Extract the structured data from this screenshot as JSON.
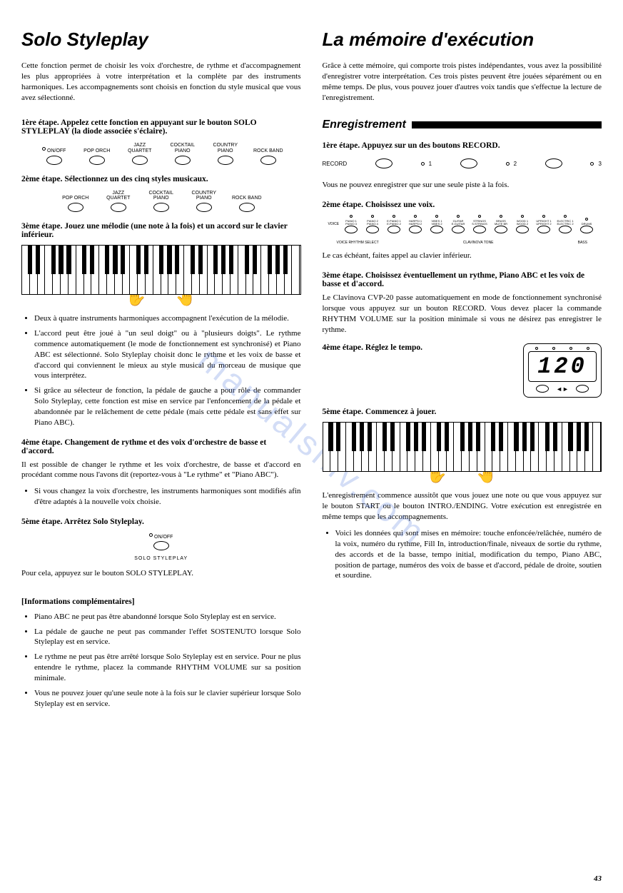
{
  "page_number": "43",
  "watermark": "manualshiv.com",
  "left": {
    "title": "Solo Styleplay",
    "intro": "Cette fonction permet de choisir les voix d'orchestre, de rythme et d'accompagnement les plus appropriées à votre interprétation et la complète par des instruments harmoniques. Les accompagnements sont choisis en fonction du style musical que vous avez sélectionné.",
    "step1": "1ère étape.  Appelez cette fonction en appuyant sur le bouton SOLO STYLEPLAY (la diode associée s'éclaire).",
    "buttons1_onoff": "ON/OFF",
    "styles": [
      "POP\nORCH",
      "JAZZ\nQUARTET",
      "COCKTAIL\nPIANO",
      "COUNTRY\nPIANO",
      "ROCK\nBAND"
    ],
    "step2": "2ème étape.  Sélectionnez un des cinq styles musicaux.",
    "step3": "3ème étape.  Jouez une mélodie (une note à la fois) et un accord  sur le clavier inférieur.",
    "step3_bullets": [
      "Deux à quatre instruments harmoniques accompagnent l'exécution de la mélodie.",
      "L'accord peut être joué à \"un seul doigt\" ou à \"plusieurs doigts\". Le rythme commence automatiquement (le mode de fonctionnement est synchronisé) et Piano ABC est sélectionné. Solo Styleplay choisit donc le rythme et les voix de basse et d'accord qui conviennent le mieux au style musical du morceau de musique que vous interprétez.",
      "Si grâce au sélecteur de fonction, la pédale de gauche a pour rôle de commander Solo Styleplay, cette fonction est mise en service par l'enfoncement de la pédale et abandonnée par le relâchement de cette pédale (mais cette pédale est sans effet sur Piano ABC)."
    ],
    "step4_title": "4ème étape.  Changement de rythme et des voix d'orchestre de basse et d'accord.",
    "step4_body": "Il est possible de changer le rythme et les voix d'orchestre, de basse et d'accord en procédant comme nous l'avons dit (reportez-vous à \"Le rythme\" et \"Piano ABC\").",
    "step4_bullets": [
      "Si vous changez la voix d'orchestre, les instruments harmoniques sont modifiés afin d'être adaptés à la nouvelle voix choisie."
    ],
    "step5": "5ème étape.  Arrêtez Solo Styleplay.",
    "solo_off_label": "ON/OFF",
    "solo_caption": "SOLO STYLEPLAY",
    "step5_body": "Pour cela, appuyez sur le bouton SOLO STYLEPLAY.",
    "info_hdr": "[Informations complémentaires]",
    "info_bullets": [
      "Piano ABC ne peut pas être abandonné lorsque Solo Styleplay est en service.",
      "La pédale de gauche ne peut pas commander l'effet SOSTENUTO lorsque Solo Styleplay est en service.",
      "Le rythme ne peut pas être arrêté lorsque Solo Styleplay est en service. Pour ne plus entendre le rythme, placez la commande RHYTHM VOLUME sur sa position minimale.",
      "Vous ne pouvez jouer qu'une seule note à la fois sur le clavier supérieur lorsque Solo Styleplay est en service."
    ]
  },
  "right": {
    "title": "La mémoire d'exécution",
    "intro": "Grâce à cette mémoire, qui comporte trois pistes indépendantes, vous avez la possibilité d'enregistrer votre interprétation. Ces trois pistes peuvent être jouées séparément ou en même temps. De plus, vous pouvez jouer d'autres voix tandis que s'effectue la lecture de l'enregistrement.",
    "section": "Enregistrement",
    "step1": "1ère étape.  Appuyez sur un des boutons RECORD.",
    "record_label": "RECORD",
    "record_nums": [
      "1",
      "2",
      "3"
    ],
    "step1_body": "Vous ne pouvez enregistrer que sur une seule piste à la fois.",
    "step2": "2ème étape.  Choisissez une voix.",
    "voices": [
      "PIANO 1",
      "PIANO 2",
      "E.PIANO 1",
      "HARPSI 1",
      "VIBES 1",
      "GUITAR",
      "STRINGS",
      "BRASS",
      "WOOD 1",
      "UPRIGHT 1",
      "ELECTRIC 1",
      "DRUMS"
    ],
    "voices2": [
      "PIANO 3",
      "PIANO 4",
      "E.PIANO 2",
      "HARPSI 2",
      "VIBES 2",
      "E.GUITAR",
      "S.STRINGS",
      "MUTE BR",
      "WOOD 2",
      "UPRIGHT 2",
      "ELECTRIC 2",
      ""
    ],
    "voice_side": "VOICE",
    "voice_sub_left": "VOICE RHYTHM SELECT",
    "voice_sub_mid": "CLAVINOVA TONE",
    "voice_sub_right": "BASS",
    "step2_body": "Le cas échéant, faites appel au clavier inférieur.",
    "step3_title": "3ème étape.  Choisissez éventuellement un rythme, Piano ABC et les voix de basse et d'accord.",
    "step3_body": "Le Clavinova CVP-20 passe automatiquement en mode de fonctionnement synchronisé lorsque vous appuyez sur un bouton RECORD. Vous devez placer la commande RHYTHM VOLUME sur la position minimale si vous ne désirez pas enregistrer le rythme.",
    "step4": "4ème étape.  Réglez le tempo.",
    "tempo_value": "120",
    "step5": "5ème étape.  Commencez à jouer.",
    "step5_body": "L'enregistrement commence aussitôt que vous jouez une note ou que vous appuyez sur le bouton START ou le bouton  INTRO./ENDING.  Votre exécution est enregistrée en même temps  que les accompagnements.",
    "step5_bullets": [
      "Voici les données qui sont mises en mémoire: touche enfoncée/relâchée, numéro de la voix, numéro du rythme, Fill In, introduction/finale, niveaux de sortie du rythme, des accords et de la basse, tempo initial, modification du tempo, Piano ABC, position de partage, numéros des voix de basse et d'accord, pédale de droite, soutien et sourdine."
    ]
  },
  "keyboard": {
    "white_key_count": 36,
    "black_key_positions_pct": [
      2.0,
      4.8,
      10.4,
      13.2,
      16.0,
      21.5,
      24.3,
      29.8,
      32.7,
      35.5,
      41.0,
      43.8,
      49.3,
      52.2,
      55.0,
      60.5,
      63.3,
      68.8,
      71.7,
      74.5,
      80.0,
      82.8,
      88.3,
      91.2,
      94.0
    ]
  }
}
